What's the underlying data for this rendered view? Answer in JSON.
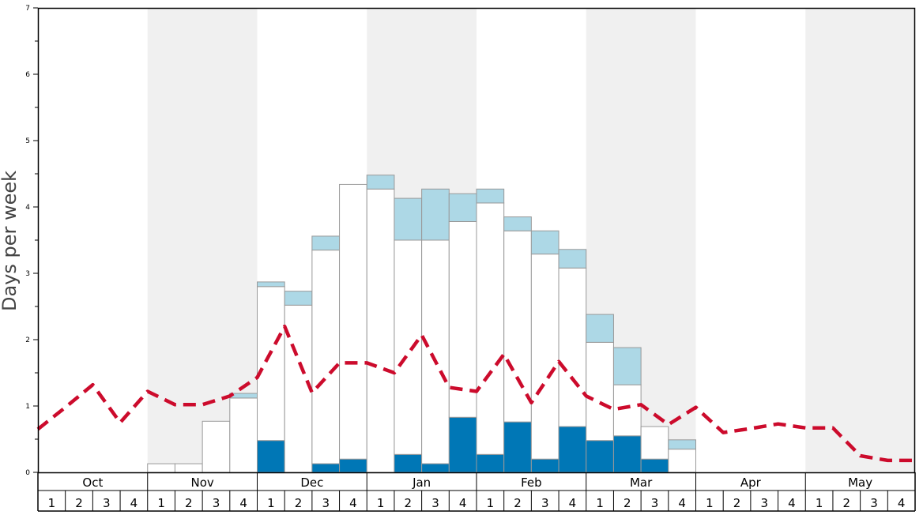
{
  "chart_data": {
    "type": "bar",
    "ylabel": "Days per week",
    "ylim": [
      0,
      7
    ],
    "y_ticks": [
      "0",
      "1",
      "2",
      "3",
      "4",
      "5",
      "6",
      "7"
    ],
    "months": [
      "Oct",
      "Nov",
      "Dec",
      "Jan",
      "Feb",
      "Mar",
      "Apr",
      "May"
    ],
    "week_labels": [
      "1",
      "2",
      "3",
      "4"
    ],
    "colors": {
      "bottom": "#0077b6",
      "middle": "#ffffff",
      "top": "#add8e6",
      "bar_edge": "#999999",
      "line": "#cc0b2c",
      "band": "#f0f0f0"
    },
    "stacked_bars": {
      "bottom": [
        0,
        0,
        0,
        0,
        0,
        0,
        0,
        0,
        0.48,
        0,
        0.13,
        0.2,
        0,
        0.27,
        0.13,
        0.83,
        0.27,
        0.76,
        0.2,
        0.69,
        0.48,
        0.55,
        0.2,
        0,
        0,
        0,
        0,
        0,
        0,
        0,
        0,
        0
      ],
      "middle": [
        0,
        0,
        0,
        0,
        0.13,
        0.13,
        0.77,
        1.12,
        2.32,
        2.52,
        3.22,
        4.14,
        4.27,
        3.23,
        3.37,
        2.95,
        3.79,
        2.88,
        3.09,
        2.39,
        1.48,
        0.77,
        0.49,
        0.35,
        0,
        0,
        0,
        0,
        0,
        0,
        0,
        0
      ],
      "top": [
        0,
        0,
        0,
        0,
        0,
        0,
        0,
        0.07,
        0.07,
        0.21,
        0.21,
        0,
        0.21,
        0.63,
        0.77,
        0.42,
        0.21,
        0.21,
        0.35,
        0.28,
        0.42,
        0.56,
        0,
        0.14,
        0,
        0,
        0,
        0,
        0,
        0,
        0,
        0
      ]
    },
    "line": [
      0.65,
      0.98,
      1.32,
      0.75,
      1.22,
      1.02,
      1.02,
      1.15,
      1.43,
      2.2,
      1.2,
      1.65,
      1.65,
      1.5,
      2.07,
      1.28,
      1.22,
      1.78,
      1.05,
      1.67,
      1.15,
      0.95,
      1.02,
      0.72,
      0.98,
      0.6,
      0.66,
      0.73,
      0.67,
      0.67,
      0.25,
      0.18,
      0.18
    ]
  }
}
